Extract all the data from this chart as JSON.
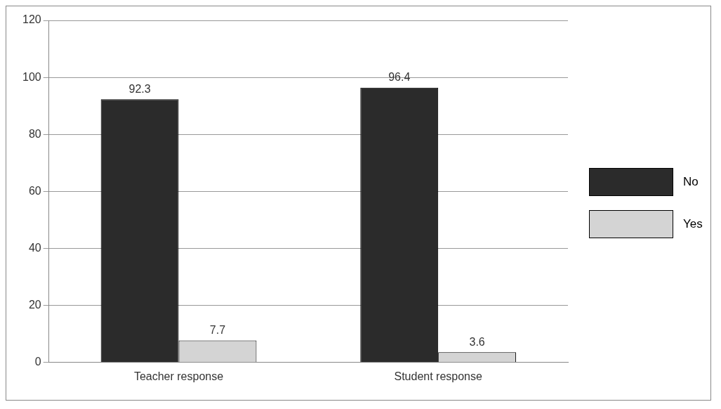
{
  "chart_data": {
    "type": "bar",
    "categories": [
      "Teacher response",
      "Student response"
    ],
    "series": [
      {
        "name": "No",
        "color": "#2b2b2b",
        "values": [
          92.3,
          96.4
        ]
      },
      {
        "name": "Yes",
        "color": "#d4d4d4",
        "values": [
          7.7,
          3.6
        ]
      }
    ],
    "ylim": [
      0,
      120
    ],
    "yticks": [
      0,
      20,
      40,
      60,
      80,
      100,
      120
    ],
    "grid": "y",
    "legend": "right",
    "data_labels": true
  }
}
